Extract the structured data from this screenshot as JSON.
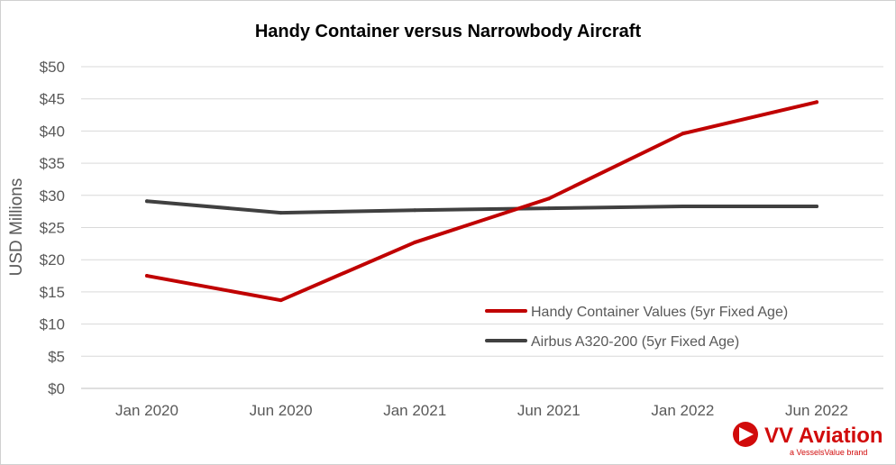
{
  "chart_data": {
    "type": "line",
    "title": "Handy Container versus Narrowbody Aircraft",
    "xlabel": "",
    "ylabel": "USD Millions",
    "categories": [
      "Jan 2020",
      "Jun 2020",
      "Jan 2021",
      "Jun 2021",
      "Jan 2022",
      "Jun 2022"
    ],
    "y_ticks": [
      "$0",
      "$5",
      "$10",
      "$15",
      "$20",
      "$25",
      "$30",
      "$35",
      "$40",
      "$45",
      "$50"
    ],
    "ylim": [
      0,
      50
    ],
    "grid": true,
    "legend_position": "bottom-right",
    "series": [
      {
        "name": "Handy Container Values (5yr Fixed Age)",
        "color": "#c00000",
        "values": [
          17.5,
          13.7,
          22.7,
          29.5,
          39.6,
          44.5
        ]
      },
      {
        "name": "Airbus A320-200 (5yr Fixed Age)",
        "color": "#404040",
        "values": [
          29.1,
          27.3,
          27.7,
          28.0,
          28.3,
          28.3
        ]
      }
    ]
  },
  "logo": {
    "name": "VV Aviation",
    "tagline": "a VesselsValue brand",
    "icon": "vv-triangle-icon",
    "color": "#d10b0b"
  }
}
